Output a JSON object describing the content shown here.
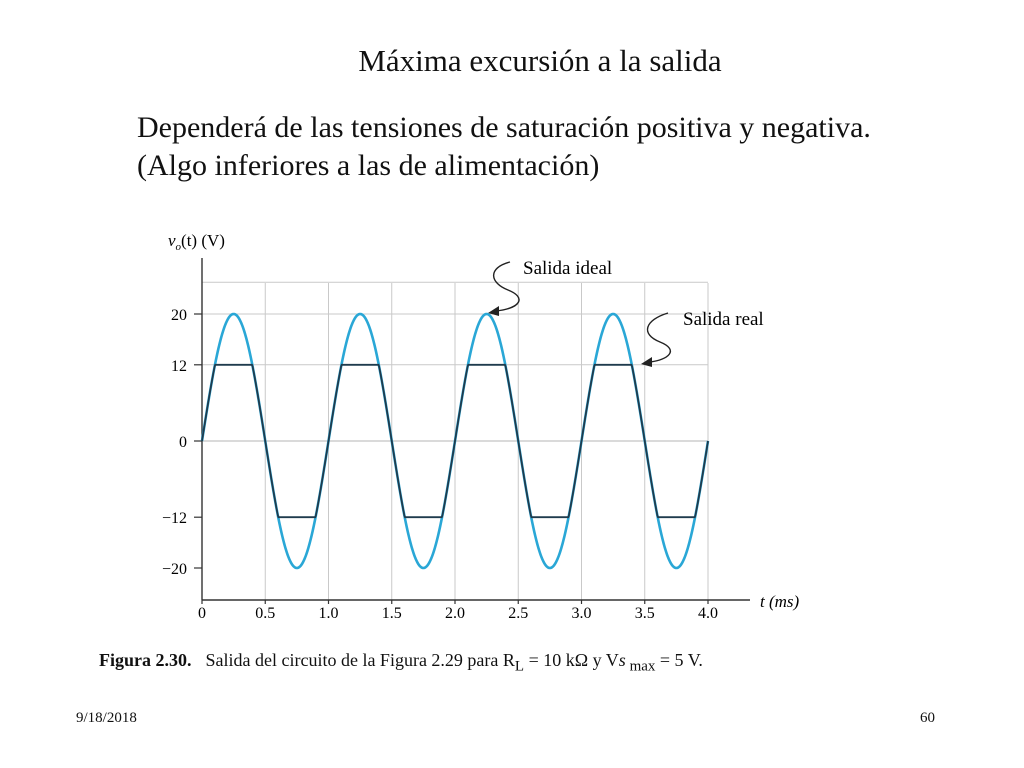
{
  "slide": {
    "title": "Máxima excursión a la salida",
    "body_line_1": "Dependerá de las tensiones de saturación positiva y negativa.",
    "body_line_2": "(Algo inferiores a las de alimentación)"
  },
  "caption": {
    "label": "Figura 2.30.",
    "text_before_sub": "Salida del circuito de la Figura 2.29  para R",
    "sub_L": "L",
    "text_mid": " = 10 kΩ y V",
    "var_s": "s",
    "sub_max": " max",
    "text_end": " = 5 V."
  },
  "footer": {
    "date": "9/18/2018",
    "page_number": "60"
  },
  "chart_data": {
    "type": "line",
    "ylabel_prefix": "v",
    "ylabel_sub": "o",
    "ylabel_suffix": "(t) (V)",
    "xlabel": "t (ms)",
    "xlim": [
      0,
      4.0
    ],
    "ylim": [
      -25,
      25
    ],
    "x_ticks": [
      "0",
      "0.5",
      "1.0",
      "1.5",
      "2.0",
      "2.5",
      "3.0",
      "3.5",
      "4.0"
    ],
    "x_tick_values": [
      0,
      0.5,
      1.0,
      1.5,
      2.0,
      2.5,
      3.0,
      3.5,
      4.0
    ],
    "y_ticks": [
      "20",
      "12",
      "0",
      "−12",
      "−20"
    ],
    "y_tick_values": [
      20,
      12,
      0,
      -12,
      -20
    ],
    "grid": true,
    "signal": {
      "amplitude_V": 20,
      "period_ms": 1.0
    },
    "series": [
      {
        "name": "Salida ideal",
        "color": "#2aa7d6",
        "clip_V": null
      },
      {
        "name": "Salida real",
        "color": "#1f3b4d",
        "clip_V": 12
      }
    ],
    "annotations": [
      {
        "text": "Salida ideal",
        "target_series": "Salida ideal"
      },
      {
        "text": "Salida real",
        "target_series": "Salida real"
      }
    ]
  }
}
